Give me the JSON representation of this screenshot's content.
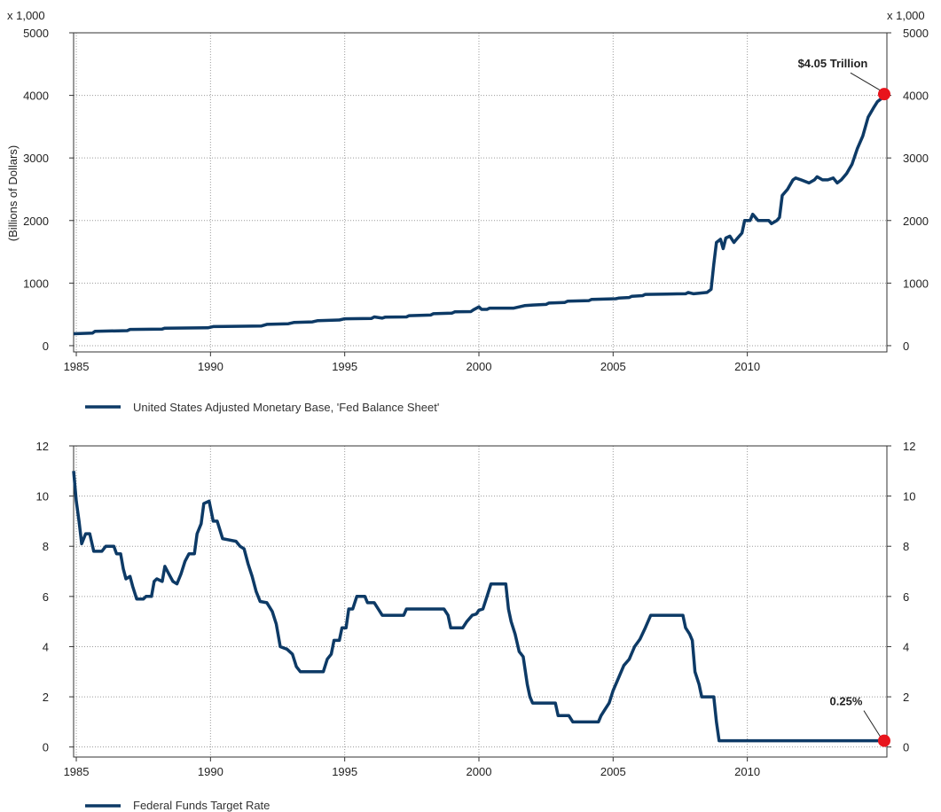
{
  "chart_data": [
    {
      "type": "line",
      "multiplier_label_left": "x 1,000",
      "multiplier_label_right": "x 1,000",
      "ylabel": "(Billions of Dollars)",
      "xlim": [
        1984.9,
        2015.2
      ],
      "ylim": [
        -100,
        5000
      ],
      "x_ticks": [
        1985,
        1990,
        1995,
        2000,
        2005,
        2010
      ],
      "y_ticks": [
        0,
        1000,
        2000,
        3000,
        4000,
        5000
      ],
      "grid": true,
      "line_color": "#0d3a66",
      "marker_color": "#e8141c",
      "annotation": {
        "text": "$4.05 Trillion",
        "x": 2014.6,
        "y": 4020
      },
      "series": [
        {
          "name": "United States Adjusted Monetary Base, 'Fed Balance Sheet'",
          "points": [
            [
              1984.9,
              190
            ],
            [
              1985.6,
              200
            ],
            [
              1985.7,
              230
            ],
            [
              1986.9,
              240
            ],
            [
              1987.0,
              260
            ],
            [
              1988.2,
              265
            ],
            [
              1988.3,
              280
            ],
            [
              1989.9,
              285
            ],
            [
              1990.1,
              305
            ],
            [
              1991.9,
              315
            ],
            [
              1992.1,
              340
            ],
            [
              1992.9,
              350
            ],
            [
              1993.1,
              370
            ],
            [
              1993.8,
              380
            ],
            [
              1994.0,
              400
            ],
            [
              1994.8,
              410
            ],
            [
              1995.0,
              430
            ],
            [
              1996.0,
              435
            ],
            [
              1996.1,
              460
            ],
            [
              1996.4,
              440
            ],
            [
              1996.5,
              455
            ],
            [
              1997.3,
              460
            ],
            [
              1997.4,
              480
            ],
            [
              1998.2,
              490
            ],
            [
              1998.3,
              510
            ],
            [
              1999.0,
              520
            ],
            [
              1999.1,
              540
            ],
            [
              1999.7,
              545
            ],
            [
              1999.8,
              575
            ],
            [
              2000.0,
              620
            ],
            [
              2000.1,
              580
            ],
            [
              2000.3,
              580
            ],
            [
              2000.4,
              600
            ],
            [
              2001.3,
              600
            ],
            [
              2001.5,
              620
            ],
            [
              2001.7,
              640
            ],
            [
              2002.0,
              650
            ],
            [
              2002.5,
              660
            ],
            [
              2002.6,
              680
            ],
            [
              2003.2,
              690
            ],
            [
              2003.3,
              710
            ],
            [
              2004.1,
              720
            ],
            [
              2004.2,
              740
            ],
            [
              2005.1,
              750
            ],
            [
              2005.2,
              760
            ],
            [
              2005.6,
              770
            ],
            [
              2005.7,
              790
            ],
            [
              2006.1,
              800
            ],
            [
              2006.2,
              820
            ],
            [
              2007.0,
              825
            ],
            [
              2007.7,
              830
            ],
            [
              2007.8,
              850
            ],
            [
              2008.0,
              830
            ],
            [
              2008.5,
              850
            ],
            [
              2008.65,
              900
            ],
            [
              2008.75,
              1300
            ],
            [
              2008.85,
              1650
            ],
            [
              2009.0,
              1700
            ],
            [
              2009.1,
              1550
            ],
            [
              2009.2,
              1720
            ],
            [
              2009.35,
              1750
            ],
            [
              2009.5,
              1650
            ],
            [
              2009.6,
              1700
            ],
            [
              2009.8,
              1800
            ],
            [
              2009.9,
              2000
            ],
            [
              2010.1,
              2000
            ],
            [
              2010.2,
              2100
            ],
            [
              2010.3,
              2050
            ],
            [
              2010.4,
              2000
            ],
            [
              2010.8,
              2000
            ],
            [
              2010.9,
              1950
            ],
            [
              2011.1,
              2000
            ],
            [
              2011.2,
              2050
            ],
            [
              2011.3,
              2400
            ],
            [
              2011.5,
              2500
            ],
            [
              2011.7,
              2650
            ],
            [
              2011.8,
              2680
            ],
            [
              2012.0,
              2650
            ],
            [
              2012.3,
              2600
            ],
            [
              2012.5,
              2650
            ],
            [
              2012.6,
              2700
            ],
            [
              2012.8,
              2650
            ],
            [
              2013.0,
              2650
            ],
            [
              2013.2,
              2680
            ],
            [
              2013.35,
              2600
            ],
            [
              2013.5,
              2650
            ],
            [
              2013.7,
              2750
            ],
            [
              2013.9,
              2900
            ],
            [
              2014.1,
              3150
            ],
            [
              2014.3,
              3350
            ],
            [
              2014.5,
              3650
            ],
            [
              2014.7,
              3800
            ],
            [
              2014.85,
              3900
            ],
            [
              2015.0,
              3950
            ],
            [
              2015.1,
              4020
            ]
          ]
        }
      ]
    },
    {
      "type": "line",
      "ylabel": "",
      "xlim": [
        1984.9,
        2015.2
      ],
      "ylim": [
        -0.4,
        12
      ],
      "x_ticks": [
        1985,
        1990,
        1995,
        2000,
        2005,
        2010
      ],
      "y_ticks": [
        0,
        2,
        4,
        6,
        8,
        10,
        12
      ],
      "grid": true,
      "line_color": "#0d3a66",
      "marker_color": "#e8141c",
      "annotation": {
        "text": "0.25%",
        "x": 2014.6,
        "y": 0.25
      },
      "series": [
        {
          "name": "Federal Funds Target Rate",
          "points": [
            [
              1984.9,
              11.0
            ],
            [
              1985.0,
              9.8
            ],
            [
              1985.1,
              9.0
            ],
            [
              1985.2,
              8.1
            ],
            [
              1985.35,
              8.5
            ],
            [
              1985.5,
              8.5
            ],
            [
              1985.65,
              7.8
            ],
            [
              1985.95,
              7.8
            ],
            [
              1986.1,
              8.0
            ],
            [
              1986.4,
              8.0
            ],
            [
              1986.5,
              7.7
            ],
            [
              1986.65,
              7.7
            ],
            [
              1986.75,
              7.1
            ],
            [
              1986.85,
              6.7
            ],
            [
              1987.0,
              6.8
            ],
            [
              1987.1,
              6.4
            ],
            [
              1987.25,
              5.9
            ],
            [
              1987.5,
              5.9
            ],
            [
              1987.6,
              6.0
            ],
            [
              1987.8,
              6.0
            ],
            [
              1987.9,
              6.6
            ],
            [
              1988.0,
              6.7
            ],
            [
              1988.2,
              6.6
            ],
            [
              1988.3,
              7.2
            ],
            [
              1988.45,
              6.9
            ],
            [
              1988.6,
              6.6
            ],
            [
              1988.75,
              6.5
            ],
            [
              1988.9,
              6.9
            ],
            [
              1989.05,
              7.4
            ],
            [
              1989.2,
              7.7
            ],
            [
              1989.4,
              7.7
            ],
            [
              1989.5,
              8.5
            ],
            [
              1989.65,
              8.9
            ],
            [
              1989.75,
              9.7
            ],
            [
              1989.95,
              9.8
            ],
            [
              1990.1,
              9.0
            ],
            [
              1990.25,
              9.0
            ],
            [
              1990.45,
              8.3
            ],
            [
              1990.95,
              8.2
            ],
            [
              1991.1,
              8.0
            ],
            [
              1991.25,
              7.9
            ],
            [
              1991.4,
              7.3
            ],
            [
              1991.55,
              6.8
            ],
            [
              1991.7,
              6.2
            ],
            [
              1991.85,
              5.8
            ],
            [
              1992.1,
              5.75
            ],
            [
              1992.3,
              5.4
            ],
            [
              1992.45,
              4.9
            ],
            [
              1992.6,
              4.0
            ],
            [
              1992.85,
              3.9
            ],
            [
              1993.05,
              3.7
            ],
            [
              1993.2,
              3.2
            ],
            [
              1993.35,
              3.0
            ],
            [
              1994.2,
              3.0
            ],
            [
              1994.35,
              3.5
            ],
            [
              1994.5,
              3.7
            ],
            [
              1994.6,
              4.25
            ],
            [
              1994.8,
              4.25
            ],
            [
              1994.9,
              4.75
            ],
            [
              1995.05,
              4.75
            ],
            [
              1995.15,
              5.5
            ],
            [
              1995.3,
              5.5
            ],
            [
              1995.45,
              6.0
            ],
            [
              1995.75,
              6.0
            ],
            [
              1995.85,
              5.75
            ],
            [
              1996.1,
              5.75
            ],
            [
              1996.25,
              5.5
            ],
            [
              1996.4,
              5.25
            ],
            [
              1997.2,
              5.25
            ],
            [
              1997.3,
              5.5
            ],
            [
              1998.7,
              5.5
            ],
            [
              1998.85,
              5.25
            ],
            [
              1998.95,
              4.75
            ],
            [
              1999.4,
              4.75
            ],
            [
              1999.55,
              5.0
            ],
            [
              1999.75,
              5.25
            ],
            [
              1999.9,
              5.3
            ],
            [
              2000.0,
              5.45
            ],
            [
              2000.15,
              5.5
            ],
            [
              2000.3,
              6.0
            ],
            [
              2000.45,
              6.5
            ],
            [
              2001.0,
              6.5
            ],
            [
              2001.1,
              5.5
            ],
            [
              2001.2,
              5.0
            ],
            [
              2001.35,
              4.5
            ],
            [
              2001.5,
              3.8
            ],
            [
              2001.65,
              3.6
            ],
            [
              2001.8,
              2.5
            ],
            [
              2001.9,
              2.0
            ],
            [
              2002.0,
              1.75
            ],
            [
              2002.85,
              1.75
            ],
            [
              2002.95,
              1.25
            ],
            [
              2003.35,
              1.25
            ],
            [
              2003.5,
              1.0
            ],
            [
              2004.45,
              1.0
            ],
            [
              2004.55,
              1.25
            ],
            [
              2004.7,
              1.5
            ],
            [
              2004.85,
              1.75
            ],
            [
              2005.0,
              2.25
            ],
            [
              2005.2,
              2.75
            ],
            [
              2005.4,
              3.25
            ],
            [
              2005.6,
              3.5
            ],
            [
              2005.8,
              4.0
            ],
            [
              2006.0,
              4.3
            ],
            [
              2006.2,
              4.75
            ],
            [
              2006.4,
              5.25
            ],
            [
              2007.6,
              5.25
            ],
            [
              2007.7,
              4.75
            ],
            [
              2007.85,
              4.5
            ],
            [
              2007.95,
              4.25
            ],
            [
              2008.05,
              3.0
            ],
            [
              2008.2,
              2.5
            ],
            [
              2008.3,
              2.0
            ],
            [
              2008.75,
              2.0
            ],
            [
              2008.85,
              1.0
            ],
            [
              2008.95,
              0.25
            ],
            [
              2015.1,
              0.25
            ]
          ]
        }
      ]
    }
  ]
}
